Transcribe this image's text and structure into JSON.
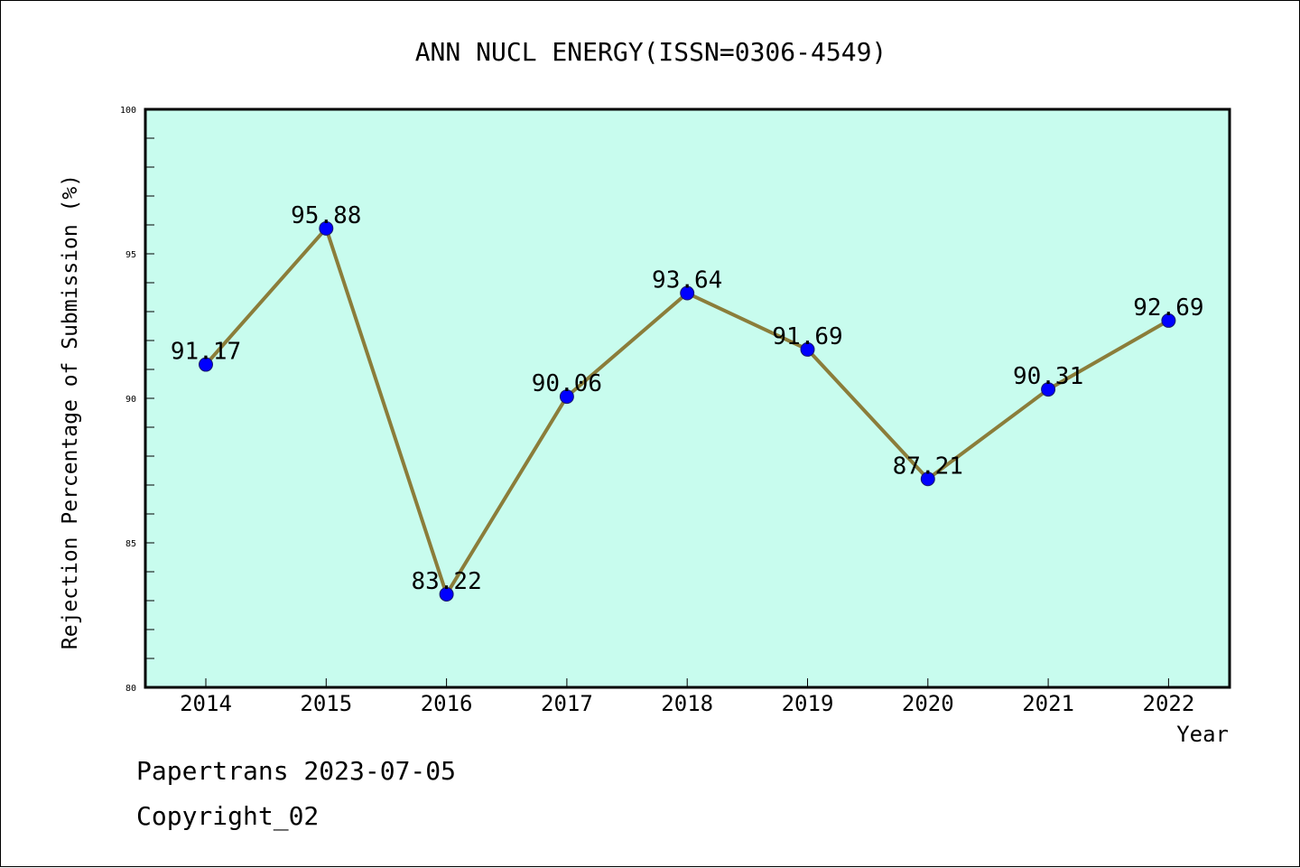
{
  "chart_data": {
    "type": "line",
    "title": "ANN NUCL ENERGY(ISSN=0306-4549)",
    "xlabel": "Year",
    "ylabel": "Rejection Percentage of Submission (%)",
    "categories": [
      "2014",
      "2015",
      "2016",
      "2017",
      "2018",
      "2019",
      "2020",
      "2021",
      "2022"
    ],
    "values": [
      91.17,
      95.88,
      83.22,
      90.06,
      93.64,
      91.69,
      87.21,
      90.31,
      92.69
    ],
    "data_labels": [
      "91.17",
      "95.88",
      "83.22",
      "90.06",
      "93.64",
      "91.69",
      "87.21",
      "90.31",
      "92.69"
    ],
    "ylim": [
      80,
      100
    ],
    "y_ticks": [
      "80",
      "85",
      "90",
      "95",
      "100"
    ],
    "grid": false,
    "colors": {
      "plot_background": "#c8fcee",
      "line": "#8b7d3a",
      "marker": "#0000ff",
      "axes": "#000000"
    }
  },
  "footer": {
    "line1": "Papertrans 2023-07-05",
    "line2": "Copyright_02"
  }
}
